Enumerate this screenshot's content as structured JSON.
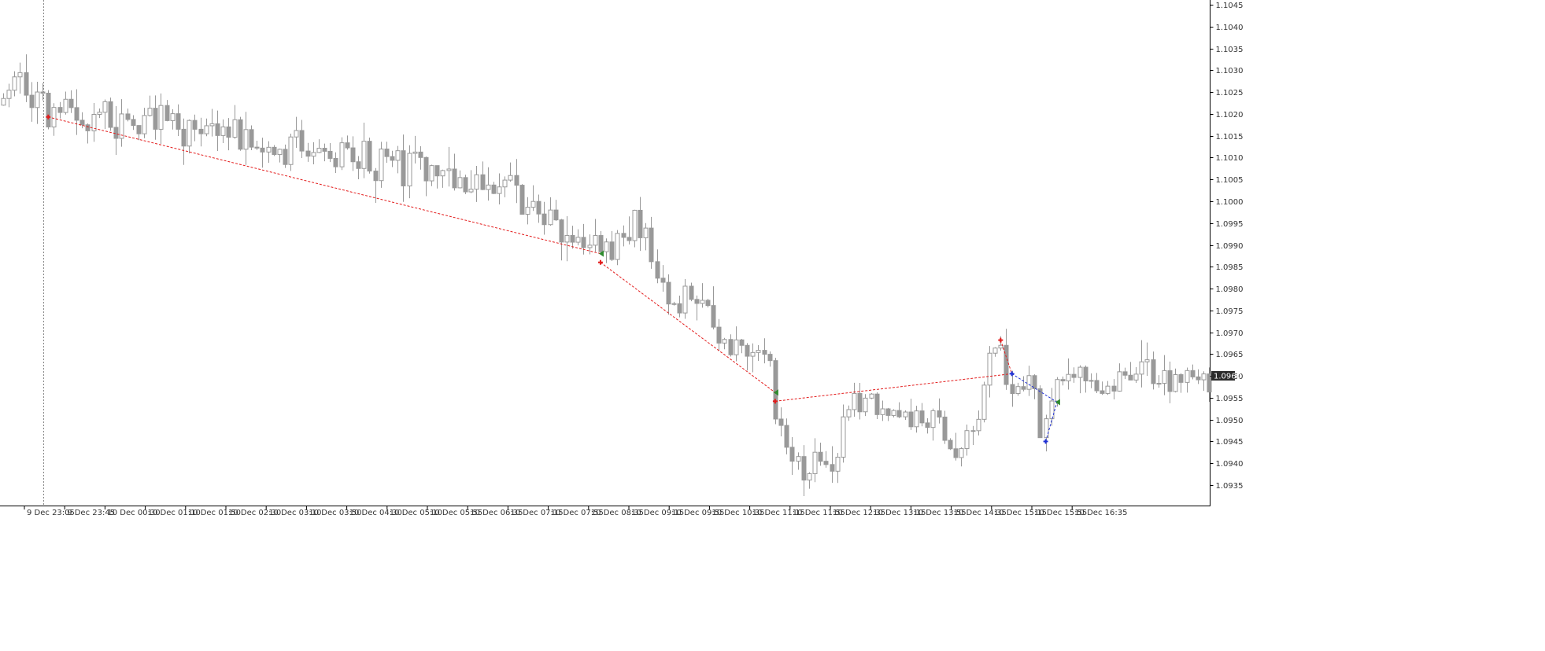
{
  "chart_data": {
    "type": "candlestick",
    "title": "",
    "instrument": "",
    "timeframe": "",
    "ylim": [
      1.0931,
      1.1047
    ],
    "y_ticks": [
      "1.1045",
      "1.1040",
      "1.1035",
      "1.1030",
      "1.1025",
      "1.1020",
      "1.1015",
      "1.1010",
      "1.1005",
      "1.1000",
      "1.0995",
      "1.0990",
      "1.0985",
      "1.0980",
      "1.0975",
      "1.0970",
      "1.0965",
      "1.0960",
      "1.0955",
      "1.0950",
      "1.0945",
      "1.0940",
      "1.0935"
    ],
    "x_ticks": [
      "9 Dec 23:05",
      "9 Dec 23:45",
      "10 Dec 00:30",
      "10 Dec 01:10",
      "10 Dec 01:50",
      "10 Dec 02:30",
      "10 Dec 03:10",
      "10 Dec 03:50",
      "10 Dec 04:30",
      "10 Dec 05:10",
      "10 Dec 05:55",
      "10 Dec 06:35",
      "10 Dec 07:15",
      "10 Dec 07:55",
      "10 Dec 08:35",
      "10 Dec 09:15",
      "10 Dec 09:55",
      "10 Dec 10:35",
      "10 Dec 11:15",
      "10 Dec 11:55",
      "10 Dec 12:35",
      "10 Dec 13:15",
      "10 Dec 13:55",
      "10 Dec 14:35",
      "10 Dec 15:15",
      "10 Dec 15:55",
      "10 Dec 16:35"
    ],
    "current_price": "1.0960",
    "bar_count": 215,
    "period_separator_bar": 7,
    "candle_colors": {
      "bull_body": "#ffffff",
      "bear_body": "#999999",
      "outline": "#999999"
    },
    "trade_lines": [
      {
        "color": "#e31b1b",
        "from": {
          "bar": 8,
          "price": 1.10193
        },
        "to": {
          "bar": 106,
          "price": 1.0988
        }
      },
      {
        "color": "#e31b1b",
        "from": {
          "bar": 106,
          "price": 1.0986
        },
        "to": {
          "bar": 137,
          "price": 1.09562
        }
      },
      {
        "color": "#e31b1b",
        "from": {
          "bar": 137,
          "price": 1.09542
        },
        "to": {
          "bar": 179,
          "price": 1.09605
        }
      },
      {
        "color": "#e31b1b",
        "from": {
          "bar": 177,
          "price": 1.09682
        },
        "to": {
          "bar": 179,
          "price": 1.09605
        }
      },
      {
        "color": "#1f2fd6",
        "from": {
          "bar": 179,
          "price": 1.09605
        },
        "to": {
          "bar": 187,
          "price": 1.0954
        }
      },
      {
        "color": "#1f2fd6",
        "from": {
          "bar": 185,
          "price": 1.0945
        },
        "to": {
          "bar": 187,
          "price": 1.0954
        }
      }
    ],
    "trade_markers": [
      {
        "kind": "cross",
        "color": "#e31b1b",
        "bar": 8,
        "price": 1.10193
      },
      {
        "kind": "arrow",
        "color": "#2e8b2e",
        "bar": 106,
        "price": 1.0988
      },
      {
        "kind": "cross",
        "color": "#e31b1b",
        "bar": 106,
        "price": 1.0986
      },
      {
        "kind": "arrow",
        "color": "#2e8b2e",
        "bar": 137,
        "price": 1.09562
      },
      {
        "kind": "cross",
        "color": "#e31b1b",
        "bar": 137,
        "price": 1.09542
      },
      {
        "kind": "cross",
        "color": "#e31b1b",
        "bar": 177,
        "price": 1.09682
      },
      {
        "kind": "cross",
        "color": "#1f2fd6",
        "bar": 179,
        "price": 1.09605
      },
      {
        "kind": "cross",
        "color": "#1f2fd6",
        "bar": 185,
        "price": 1.0945
      },
      {
        "kind": "arrow",
        "color": "#2e8b2e",
        "bar": 187,
        "price": 1.0954
      }
    ],
    "path_anchors": [
      [
        0,
        1.1022
      ],
      [
        2,
        1.1028
      ],
      [
        5,
        1.1025
      ],
      [
        7,
        1.1023
      ],
      [
        9,
        1.1021
      ],
      [
        12,
        1.1021
      ],
      [
        18,
        1.1018
      ],
      [
        25,
        1.1017
      ],
      [
        30,
        1.1019
      ],
      [
        34,
        1.1017
      ],
      [
        40,
        1.1016
      ],
      [
        44,
        1.1014
      ],
      [
        48,
        1.101
      ],
      [
        53,
        1.1013
      ],
      [
        56,
        1.1009
      ],
      [
        62,
        1.1011
      ],
      [
        68,
        1.1009
      ],
      [
        75,
        1.1008
      ],
      [
        82,
        1.1006
      ],
      [
        88,
        1.1003
      ],
      [
        92,
        1.1002
      ],
      [
        94,
        1.0998
      ],
      [
        100,
        1.0993
      ],
      [
        104,
        1.099
      ],
      [
        108,
        1.0989
      ],
      [
        112,
        1.0994
      ],
      [
        115,
        1.0996
      ],
      [
        117,
        1.098
      ],
      [
        119,
        1.0975
      ],
      [
        122,
        1.0977
      ],
      [
        124,
        1.098
      ],
      [
        127,
        1.0972
      ],
      [
        130,
        1.0966
      ],
      [
        133,
        1.0965
      ],
      [
        135,
        1.0966
      ],
      [
        137,
        1.0964
      ],
      [
        138,
        1.0952
      ],
      [
        140,
        1.0942
      ],
      [
        143,
        1.0938
      ],
      [
        146,
        1.0941
      ],
      [
        148,
        1.094
      ],
      [
        150,
        1.0948
      ],
      [
        152,
        1.0955
      ],
      [
        156,
        1.0953
      ],
      [
        160,
        1.095
      ],
      [
        164,
        1.095
      ],
      [
        167,
        1.0948
      ],
      [
        170,
        1.0943
      ],
      [
        172,
        1.0948
      ],
      [
        174,
        1.0955
      ],
      [
        176,
        1.0962
      ],
      [
        178,
        1.0965
      ],
      [
        180,
        1.0958
      ],
      [
        182,
        1.096
      ],
      [
        184,
        1.0955
      ],
      [
        185,
        1.0947
      ],
      [
        186,
        1.095
      ],
      [
        188,
        1.0959
      ]
    ]
  }
}
